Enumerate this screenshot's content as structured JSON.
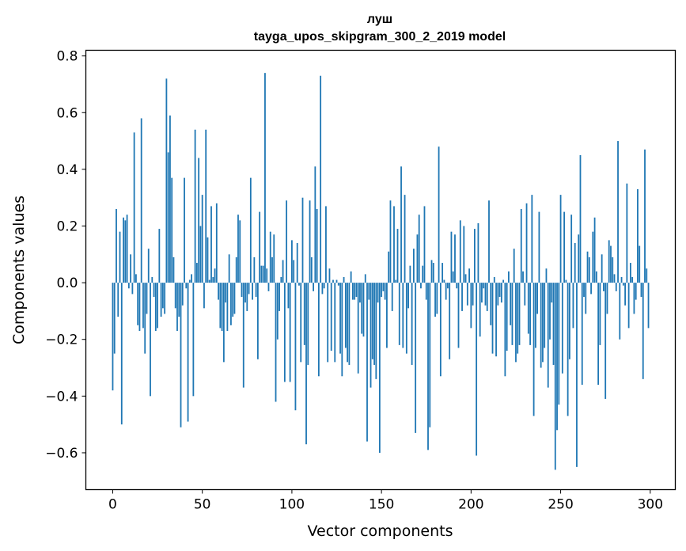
{
  "chart_data": {
    "type": "bar",
    "title_line1": "луш",
    "title_line2": "tayga_upos_skipgram_300_2_2019 model",
    "xlabel": "Vector components",
    "ylabel": "Components values",
    "xlim": [
      -15,
      314
    ],
    "ylim": [
      -0.73,
      0.82
    ],
    "xticks": [
      0,
      50,
      100,
      150,
      200,
      250,
      300
    ],
    "xtick_labels": [
      "0",
      "50",
      "100",
      "150",
      "200",
      "250",
      "300"
    ],
    "yticks": [
      -0.6,
      -0.4,
      -0.2,
      0.0,
      0.2,
      0.4,
      0.6,
      0.8
    ],
    "ytick_labels": [
      "−0.6",
      "−0.4",
      "−0.2",
      "0.0",
      "0.2",
      "0.4",
      "0.6",
      "0.8"
    ],
    "bar_color": "#1f77b4",
    "values": [
      -0.38,
      -0.25,
      0.26,
      -0.12,
      0.18,
      -0.5,
      0.23,
      0.22,
      0.24,
      -0.02,
      0.1,
      -0.04,
      0.53,
      0.03,
      -0.15,
      -0.17,
      0.58,
      -0.16,
      -0.25,
      -0.11,
      0.12,
      -0.4,
      0.02,
      -0.05,
      -0.17,
      -0.16,
      0.19,
      -0.12,
      -0.09,
      -0.11,
      0.72,
      0.46,
      0.59,
      0.37,
      0.09,
      -0.09,
      -0.17,
      -0.12,
      -0.51,
      -0.08,
      0.37,
      -0.02,
      -0.49,
      0.01,
      0.03,
      -0.4,
      0.54,
      0.07,
      0.44,
      0.2,
      0.31,
      -0.09,
      0.54,
      0.16,
      0.01,
      0.27,
      0.02,
      0.05,
      0.28,
      -0.06,
      -0.16,
      -0.17,
      -0.28,
      -0.07,
      -0.17,
      0.1,
      -0.15,
      -0.12,
      -0.11,
      0.09,
      0.24,
      0.22,
      -0.05,
      -0.37,
      -0.07,
      -0.1,
      -0.04,
      0.37,
      -0.06,
      0.09,
      -0.05,
      -0.27,
      0.25,
      0.06,
      0.06,
      0.74,
      0.05,
      -0.03,
      0.18,
      0.09,
      0.17,
      -0.42,
      -0.2,
      -0.1,
      0.02,
      0.08,
      -0.35,
      0.29,
      -0.09,
      -0.35,
      0.15,
      0.08,
      -0.45,
      0.14,
      -0.01,
      -0.28,
      0.3,
      -0.22,
      -0.57,
      -0.29,
      0.29,
      0.09,
      -0.03,
      0.41,
      0.26,
      -0.33,
      0.73,
      -0.04,
      -0.02,
      0.27,
      -0.28,
      0.05,
      -0.24,
      0.01,
      -0.28,
      0.01,
      -0.01,
      -0.25,
      -0.33,
      0.02,
      -0.23,
      -0.28,
      -0.29,
      0.04,
      -0.06,
      -0.06,
      -0.05,
      -0.32,
      -0.07,
      -0.18,
      -0.19,
      0.03,
      -0.56,
      -0.06,
      -0.37,
      -0.27,
      -0.29,
      -0.34,
      -0.07,
      -0.6,
      -0.05,
      -0.03,
      -0.06,
      -0.23,
      0.11,
      0.29,
      -0.1,
      0.27,
      0.01,
      0.19,
      -0.22,
      0.41,
      -0.23,
      0.31,
      -0.25,
      -0.09,
      0.06,
      -0.29,
      0.12,
      -0.53,
      0.17,
      0.24,
      -0.02,
      0.06,
      0.27,
      -0.06,
      -0.59,
      -0.51,
      0.08,
      0.07,
      -0.12,
      -0.11,
      0.48,
      -0.33,
      0.07,
      0.01,
      -0.06,
      -0.02,
      -0.27,
      0.18,
      0.04,
      0.17,
      -0.02,
      -0.23,
      0.22,
      -0.1,
      0.2,
      0.03,
      -0.08,
      0.05,
      -0.16,
      -0.08,
      0.19,
      -0.61,
      0.21,
      -0.19,
      -0.07,
      -0.02,
      -0.08,
      -0.1,
      0.29,
      -0.15,
      -0.25,
      0.02,
      -0.26,
      -0.08,
      -0.05,
      -0.07,
      0.01,
      -0.33,
      -0.24,
      0.04,
      -0.15,
      -0.22,
      0.12,
      -0.28,
      -0.25,
      -0.22,
      0.26,
      0.04,
      -0.08,
      0.28,
      -0.18,
      -0.22,
      0.31,
      -0.47,
      -0.23,
      -0.11,
      0.25,
      -0.3,
      -0.28,
      -0.23,
      0.05,
      -0.37,
      -0.2,
      -0.07,
      -0.29,
      -0.66,
      -0.52,
      -0.43,
      0.31,
      -0.32,
      0.25,
      0.01,
      -0.47,
      -0.27,
      0.24,
      -0.16,
      0.14,
      -0.65,
      0.17,
      0.45,
      -0.36,
      -0.05,
      -0.11,
      0.11,
      0.09,
      -0.04,
      0.18,
      0.23,
      0.04,
      -0.36,
      -0.22,
      0.1,
      -0.03,
      -0.41,
      -0.11,
      0.15,
      0.13,
      0.09,
      0.03,
      -0.03,
      0.5,
      -0.2,
      0.02,
      -0.01,
      -0.08,
      0.35,
      -0.16,
      0.07,
      0.02,
      -0.11,
      -0.06,
      0.33,
      0.13,
      -0.05,
      -0.34,
      0.47,
      0.05,
      -0.16
    ]
  }
}
